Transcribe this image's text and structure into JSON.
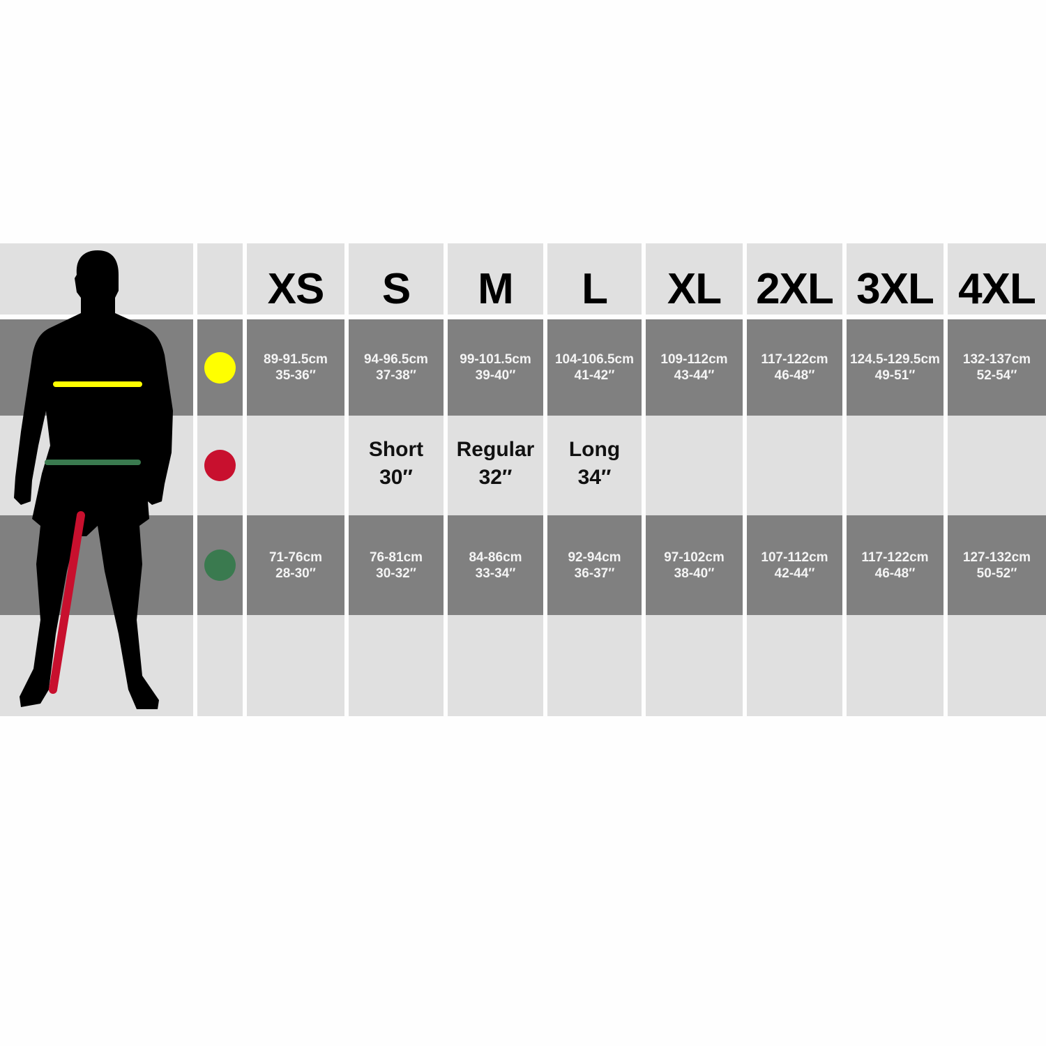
{
  "colors": {
    "header_bg": "#e0e0e0",
    "row_dark": "#808080",
    "chest": "#ffff00",
    "inside_leg": "#c8102e",
    "waist": "#3a7a4f"
  },
  "legend": [
    {
      "icon": "chest-dot-icon",
      "color": "#ffff00"
    },
    {
      "icon": "inside-leg-dot-icon",
      "color": "#c8102e"
    },
    {
      "icon": "waist-dot-icon",
      "color": "#3a7a4f"
    }
  ],
  "sizes": [
    {
      "label": "XS",
      "chest_cm": "89-91.5cm",
      "chest_in": "35-36″",
      "leg_name": "",
      "leg_in": "",
      "waist_cm": "71-76cm",
      "waist_in": "28-30″"
    },
    {
      "label": "S",
      "chest_cm": "94-96.5cm",
      "chest_in": "37-38″",
      "leg_name": "Short",
      "leg_in": "30″",
      "waist_cm": "76-81cm",
      "waist_in": "30-32″"
    },
    {
      "label": "M",
      "chest_cm": "99-101.5cm",
      "chest_in": "39-40″",
      "leg_name": "Regular",
      "leg_in": "32″",
      "waist_cm": "84-86cm",
      "waist_in": "33-34″"
    },
    {
      "label": "L",
      "chest_cm": "104-106.5cm",
      "chest_in": "41-42″",
      "leg_name": "Long",
      "leg_in": "34″",
      "waist_cm": "92-94cm",
      "waist_in": "36-37″"
    },
    {
      "label": "XL",
      "chest_cm": "109-112cm",
      "chest_in": "43-44″",
      "leg_name": "",
      "leg_in": "",
      "waist_cm": "97-102cm",
      "waist_in": "38-40″"
    },
    {
      "label": "2XL",
      "chest_cm": "117-122cm",
      "chest_in": "46-48″",
      "leg_name": "",
      "leg_in": "",
      "waist_cm": "107-112cm",
      "waist_in": "42-44″"
    },
    {
      "label": "3XL",
      "chest_cm": "124.5-129.5cm",
      "chest_in": "49-51″",
      "leg_name": "",
      "leg_in": "",
      "waist_cm": "117-122cm",
      "waist_in": "46-48″"
    },
    {
      "label": "4XL",
      "chest_cm": "132-137cm",
      "chest_in": "52-54″",
      "leg_name": "",
      "leg_in": "",
      "waist_cm": "127-132cm",
      "waist_in": "50-52″"
    }
  ]
}
